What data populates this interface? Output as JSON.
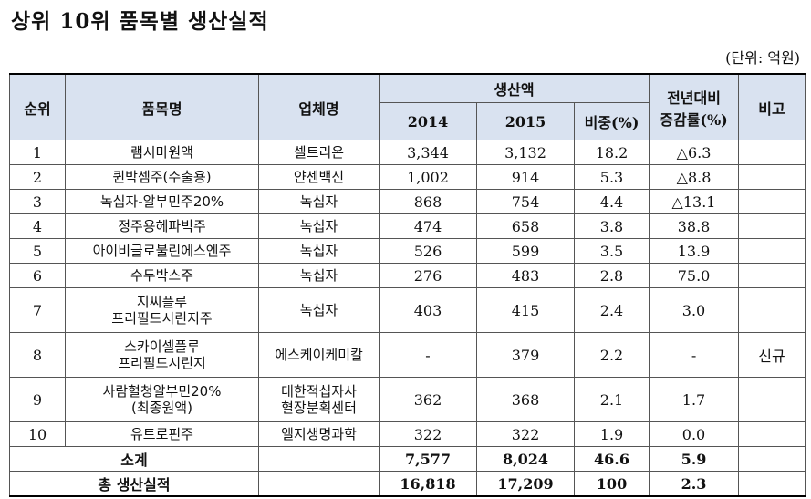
{
  "title": "상위 10위 품목별 생산실적",
  "unit_note": "(단위: 억원)",
  "headers": {
    "rank": "순위",
    "product": "품목명",
    "company": "업체명",
    "production": "생산액",
    "y2014": "2014",
    "y2015": "2015",
    "share": "비중(%)",
    "growth_line1": "전년대비",
    "growth_line2": "증감률(%)",
    "note": "비고"
  },
  "rows": [
    {
      "rank": "1",
      "product": [
        "램시마원액"
      ],
      "company": [
        "셀트리온"
      ],
      "v2014": "3,344",
      "v2015": "3,132",
      "share": "18.2",
      "growth": "△6.3",
      "note": ""
    },
    {
      "rank": "2",
      "product": [
        "퀸박셈주(수출용)"
      ],
      "company": [
        "얀센백신"
      ],
      "v2014": "1,002",
      "v2015": "914",
      "share": "5.3",
      "growth": "△8.8",
      "note": ""
    },
    {
      "rank": "3",
      "product": [
        "녹십자-알부민주20%"
      ],
      "company": [
        "녹십자"
      ],
      "v2014": "868",
      "v2015": "754",
      "share": "4.4",
      "growth": "△13.1",
      "note": ""
    },
    {
      "rank": "4",
      "product": [
        "정주용헤파빅주"
      ],
      "company": [
        "녹십자"
      ],
      "v2014": "474",
      "v2015": "658",
      "share": "3.8",
      "growth": "38.8",
      "note": ""
    },
    {
      "rank": "5",
      "product": [
        "아이비글로불린에스엔주"
      ],
      "company": [
        "녹십자"
      ],
      "v2014": "526",
      "v2015": "599",
      "share": "3.5",
      "growth": "13.9",
      "note": ""
    },
    {
      "rank": "6",
      "product": [
        "수두박스주"
      ],
      "company": [
        "녹십자"
      ],
      "v2014": "276",
      "v2015": "483",
      "share": "2.8",
      "growth": "75.0",
      "note": ""
    },
    {
      "rank": "7",
      "product": [
        "지씨플루",
        "프리필드시린지주"
      ],
      "company": [
        "녹십자"
      ],
      "v2014": "403",
      "v2015": "415",
      "share": "2.4",
      "growth": "3.0",
      "note": ""
    },
    {
      "rank": "8",
      "product": [
        "스카이셀플루",
        "프리필드시린지"
      ],
      "company": [
        "에스케이케미칼"
      ],
      "v2014": "-",
      "v2015": "379",
      "share": "2.2",
      "growth": "-",
      "note": "신규"
    },
    {
      "rank": "9",
      "product": [
        "사람혈청알부민20%",
        "(최종원액)"
      ],
      "company": [
        "대한적십자사",
        "혈장분획센터"
      ],
      "v2014": "362",
      "v2015": "368",
      "share": "2.1",
      "growth": "1.7",
      "note": ""
    },
    {
      "rank": "10",
      "product": [
        "유트로핀주"
      ],
      "company": [
        "엘지생명과학"
      ],
      "v2014": "322",
      "v2015": "322",
      "share": "1.9",
      "growth": "0.0",
      "note": ""
    }
  ],
  "subtotal": {
    "label": "소계",
    "v2014": "7,577",
    "v2015": "8,024",
    "share": "46.6",
    "growth": "5.9"
  },
  "total": {
    "label": "총 생산실적",
    "v2014": "16,818",
    "v2015": "17,209",
    "share": "100",
    "growth": "2.3"
  }
}
